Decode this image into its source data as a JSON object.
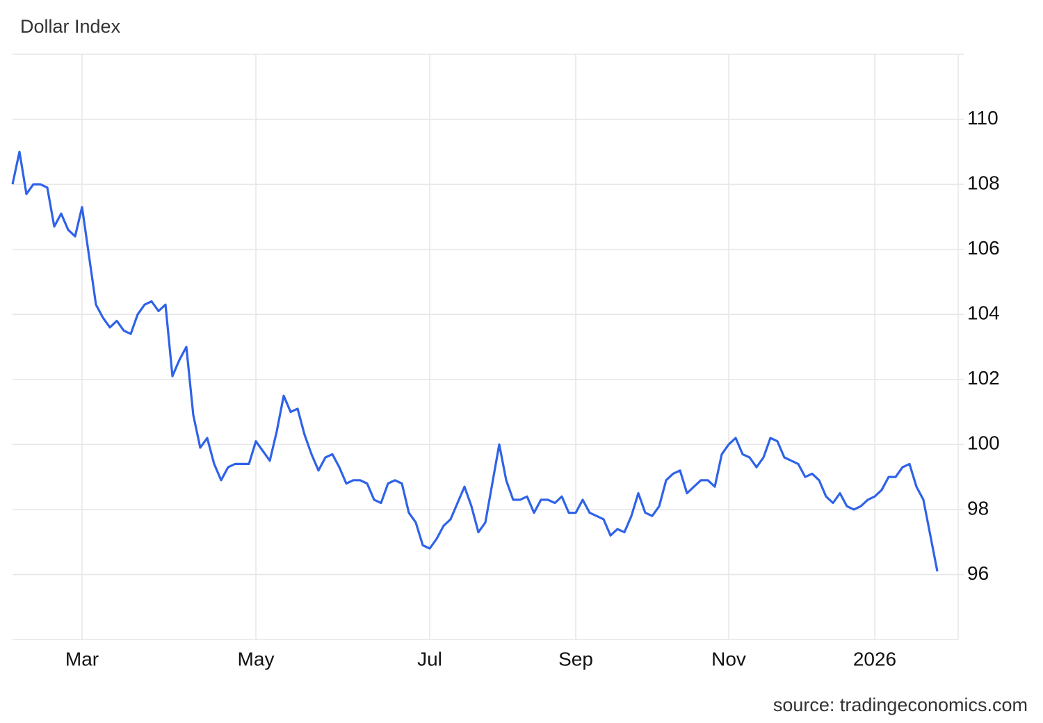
{
  "chart_data": {
    "type": "line",
    "title": "Dollar Index",
    "source": "source: tradingeconomics.com",
    "categories": [
      null,
      null,
      null,
      null,
      null,
      null,
      null,
      null,
      null,
      null,
      "Mar",
      null,
      null,
      null,
      null,
      null,
      null,
      null,
      null,
      null,
      null,
      null,
      null,
      null,
      null,
      null,
      null,
      null,
      null,
      null,
      null,
      null,
      null,
      null,
      null,
      "May",
      null,
      null,
      null,
      null,
      null,
      null,
      null,
      null,
      null,
      null,
      null,
      null,
      null,
      null,
      null,
      null,
      null,
      null,
      null,
      null,
      null,
      null,
      null,
      null,
      "Jul",
      null,
      null,
      null,
      null,
      null,
      null,
      null,
      null,
      null,
      null,
      null,
      null,
      null,
      null,
      null,
      null,
      null,
      null,
      null,
      null,
      "Sep",
      null,
      null,
      null,
      null,
      null,
      null,
      null,
      null,
      null,
      null,
      null,
      null,
      null,
      null,
      null,
      null,
      null,
      null,
      null,
      null,
      null,
      "Nov",
      null,
      null,
      null,
      null,
      null,
      null,
      null,
      null,
      null,
      null,
      null,
      null,
      null,
      null,
      null,
      null,
      null,
      null,
      null,
      null,
      "2026",
      null,
      null,
      null,
      null,
      null,
      null,
      null,
      null,
      null
    ],
    "series": [
      {
        "name": "Dollar Index",
        "color": "#2f62e8",
        "values": [
          108.0,
          109.0,
          107.7,
          108.0,
          108.0,
          107.9,
          106.7,
          107.1,
          106.6,
          106.4,
          107.3,
          105.8,
          104.3,
          103.9,
          103.6,
          103.8,
          103.5,
          103.4,
          104.0,
          104.3,
          104.4,
          104.1,
          104.3,
          102.1,
          102.6,
          103.0,
          100.9,
          99.9,
          100.2,
          99.4,
          98.9,
          99.3,
          99.4,
          99.4,
          99.4,
          100.1,
          99.8,
          99.5,
          100.4,
          101.5,
          101.0,
          101.1,
          100.3,
          99.7,
          99.2,
          99.6,
          99.7,
          99.3,
          98.8,
          98.9,
          98.9,
          98.8,
          98.3,
          98.2,
          98.8,
          98.9,
          98.8,
          97.9,
          97.6,
          96.9,
          96.8,
          97.1,
          97.5,
          97.7,
          98.2,
          98.7,
          98.1,
          97.3,
          97.6,
          98.8,
          100.0,
          98.9,
          98.3,
          98.3,
          98.4,
          97.9,
          98.3,
          98.3,
          98.2,
          98.4,
          97.9,
          97.9,
          98.3,
          97.9,
          97.8,
          97.7,
          97.2,
          97.4,
          97.3,
          97.8,
          98.5,
          97.9,
          97.8,
          98.1,
          98.9,
          99.1,
          99.2,
          98.5,
          98.7,
          98.9,
          98.9,
          98.7,
          99.7,
          100.0,
          100.2,
          99.7,
          99.6,
          99.3,
          99.6,
          100.2,
          100.1,
          99.6,
          99.5,
          99.4,
          99.0,
          99.1,
          98.9,
          98.4,
          98.2,
          98.5,
          98.1,
          98.0,
          98.1,
          98.3,
          98.4,
          98.6,
          99.0,
          99.0,
          99.3,
          99.4,
          98.7,
          98.3,
          97.2,
          96.1
        ]
      }
    ],
    "ylim": [
      94,
      112
    ],
    "yticks": [
      96,
      98,
      100,
      102,
      104,
      106,
      108,
      110
    ],
    "grid": true
  }
}
